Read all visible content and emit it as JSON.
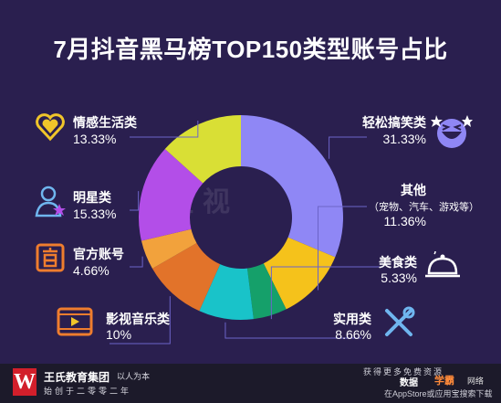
{
  "title": "7月抖音黑马榜TOP150类型账号占比",
  "watermark_text": "短视",
  "chart_data": {
    "type": "pie",
    "donut": true,
    "title": "7月抖音黑马榜TOP150类型账号占比",
    "legend": "labels placed around the ring",
    "slices": [
      {
        "name": "轻松搞笑类",
        "label_value": "31.33%",
        "value": 31.33,
        "color": "#8f87f5",
        "icon": "laughing-face-icon"
      },
      {
        "name": "其他",
        "sub": "（宠物、汽车、游戏等）",
        "label_value": "11.36%",
        "value": 11.36,
        "color": "#f5c21b",
        "icon": "none"
      },
      {
        "name": "美食类",
        "label_value": "5.33%",
        "value": 5.33,
        "color": "#15a06a",
        "icon": "food-cloche-icon"
      },
      {
        "name": "实用类",
        "label_value": "8.66%",
        "value": 8.66,
        "color": "#19c3c9",
        "icon": "tools-icon"
      },
      {
        "name": "影视音乐类",
        "label_value": "10%",
        "value": 10,
        "color": "#e2732a",
        "icon": "film-reel-icon"
      },
      {
        "name": "官方账号",
        "label_value": "4.66%",
        "value": 4.66,
        "color": "#f2a23c",
        "icon": "official-seal-icon"
      },
      {
        "name": "明星类",
        "label_value": "15.33%",
        "value": 15.33,
        "color": "#b34ee8",
        "icon": "star-person-icon"
      },
      {
        "name": "情感生活类",
        "label_value": "13.33%",
        "value": 13.33,
        "color": "#d9df35",
        "icon": "heart-icon"
      }
    ]
  },
  "footer": {
    "logo_letter": "W",
    "brand": "王氏教育集团",
    "brand_tag": "以人为本",
    "brand_sub": "始创于二零零二年",
    "watermark_top": "获得更多免费资源",
    "watermark_mid": "数据",
    "watermark_badge": "学霸",
    "watermark_mid2": "网络",
    "watermark_bottom": "在AppStore或应用宝搜索下载"
  },
  "colors": {
    "background": "#2a1f4f",
    "leader_line": "#6c64c8",
    "icon_yellow": "#f0c52a",
    "icon_orange": "#ef7d2e",
    "icon_blue": "#6fb6ef",
    "icon_white": "#ffffff"
  }
}
